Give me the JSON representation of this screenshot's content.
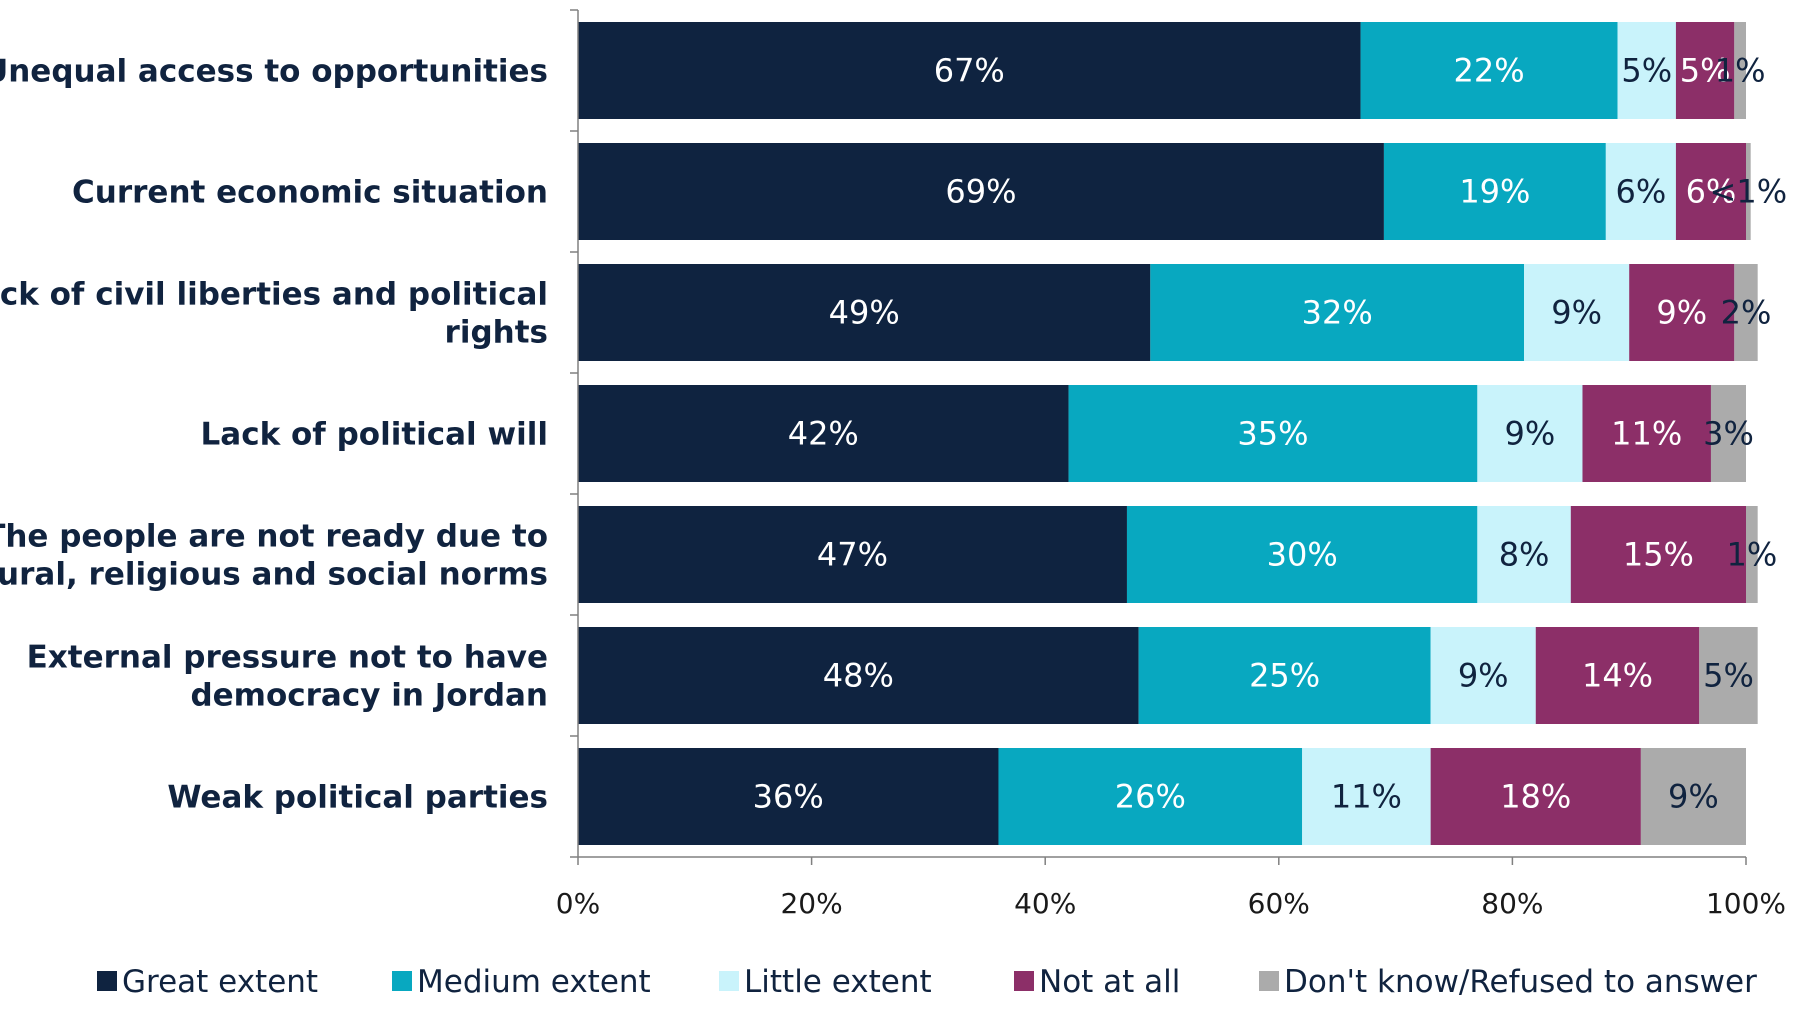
{
  "chart_data": {
    "type": "bar",
    "orientation": "horizontal",
    "stacked": true,
    "categories": [
      "Unequal access to opportunities",
      "Current economic situation",
      "Lack of civil liberties and political rights",
      "Lack of political will",
      "The people are not ready due to cultural, religious and social norms",
      "External pressure not to have democracy in Jordan",
      "Weak political parties"
    ],
    "category_lines": [
      [
        "Unequal access to opportunities"
      ],
      [
        "Current economic situation"
      ],
      [
        "Lack of civil liberties and political",
        "rights"
      ],
      [
        "Lack of political will"
      ],
      [
        "The people are not ready due to",
        "cultural, religious and social norms"
      ],
      [
        "External pressure not to have",
        "democracy in Jordan"
      ],
      [
        "Weak political parties"
      ]
    ],
    "series": [
      {
        "name": "Great extent",
        "color": "#0f2340",
        "label_color": "#ffffff",
        "values": [
          67,
          69,
          49,
          42,
          47,
          48,
          36
        ],
        "labels": [
          "67%",
          "69%",
          "49%",
          "42%",
          "47%",
          "48%",
          "36%"
        ]
      },
      {
        "name": "Medium extent",
        "color": "#08a8c0",
        "label_color": "#ffffff",
        "values": [
          22,
          19,
          32,
          35,
          30,
          25,
          26
        ],
        "labels": [
          "22%",
          "19%",
          "32%",
          "35%",
          "30%",
          "25%",
          "26%"
        ]
      },
      {
        "name": "Little extent",
        "color": "#c9f3fb",
        "label_color": "#10233f",
        "values": [
          5,
          6,
          9,
          9,
          8,
          9,
          11
        ],
        "labels": [
          "5%",
          "6%",
          "9%",
          "9%",
          "8%",
          "9%",
          "11%"
        ]
      },
      {
        "name": "Not at all",
        "color": "#8c2f68",
        "label_color": "#ffffff",
        "values": [
          5,
          6,
          9,
          11,
          15,
          14,
          18
        ],
        "labels": [
          "5%",
          "6%",
          "9%",
          "11%",
          "15%",
          "14%",
          "18%"
        ]
      },
      {
        "name": "Don't know/Refused to answer",
        "color": "#ababab",
        "label_color": "#10233f",
        "values": [
          1,
          0.4,
          2,
          3,
          1,
          5,
          9
        ],
        "labels": [
          "1%",
          "<1%",
          "2%",
          "3%",
          "1%",
          "5%",
          "9%"
        ]
      }
    ],
    "xlim": [
      0,
      100
    ],
    "xticks": [
      0,
      20,
      40,
      60,
      80,
      100
    ],
    "xtick_labels": [
      "0%",
      "20%",
      "40%",
      "60%",
      "80%",
      "100%"
    ],
    "title": "",
    "xlabel": "",
    "ylabel": "",
    "grid": false,
    "legend_position": "bottom"
  }
}
